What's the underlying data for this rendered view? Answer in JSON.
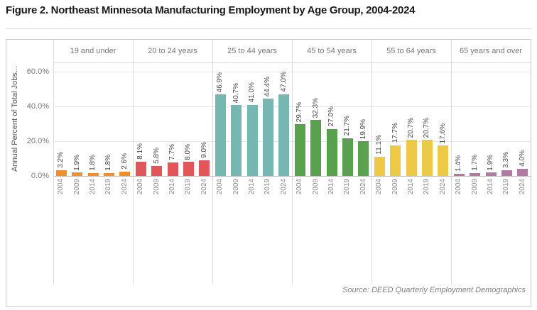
{
  "title": "Figure 2. Northeast Minnesota Manufacturing Employment by Age Group, 2004-2024",
  "source": "Source: DEED Quarterly Employment Demographics",
  "chart_data": {
    "type": "bar",
    "title": "Figure 2. Northeast Minnesota Manufacturing Employment by Age Group, 2004-2024",
    "xlabel": "",
    "ylabel": "Annual Percent of Total Jobs...",
    "ylim": [
      0,
      65
    ],
    "ytick_values": [
      0,
      20,
      40,
      60
    ],
    "ytick_labels": [
      "0.0%",
      "20.0%",
      "40.0%",
      "60.0%"
    ],
    "grid": true,
    "legend": false,
    "categories": [
      "2004",
      "2009",
      "2014",
      "2019",
      "2024"
    ],
    "groups": [
      {
        "label": "19 and under",
        "color": "#F28E2B",
        "values": [
          3.2,
          1.9,
          1.8,
          1.8,
          2.6
        ],
        "labels": [
          "3.2%",
          "1.9%",
          "1.8%",
          "1.8%",
          "2.6%"
        ]
      },
      {
        "label": "20 to 24 years",
        "color": "#E15759",
        "values": [
          8.1,
          5.8,
          7.7,
          8.0,
          9.0
        ],
        "labels": [
          "8.1%",
          "5.8%",
          "7.7%",
          "8.0%",
          "9.0%"
        ]
      },
      {
        "label": "25 to 44 years",
        "color": "#76B7B2",
        "values": [
          46.9,
          40.7,
          41.0,
          44.4,
          47.0
        ],
        "labels": [
          "46.9%",
          "40.7%",
          "41.0%",
          "44.4%",
          "47.0%"
        ]
      },
      {
        "label": "45 to 54 years",
        "color": "#59A14F",
        "values": [
          29.7,
          32.3,
          27.0,
          21.7,
          19.9
        ],
        "labels": [
          "29.7%",
          "32.3%",
          "27.0%",
          "21.7%",
          "19.9%"
        ]
      },
      {
        "label": "55 to 64 years",
        "color": "#EDC948",
        "values": [
          11.1,
          17.7,
          20.7,
          20.7,
          17.6
        ],
        "labels": [
          "11.1%",
          "17.7%",
          "20.7%",
          "20.7%",
          "17.6%"
        ]
      },
      {
        "label": "65 years and over",
        "color": "#B07AA1",
        "values": [
          1.4,
          1.7,
          1.9,
          3.3,
          4.0
        ],
        "labels": [
          "1.4%",
          "1.7%",
          "1.9%",
          "3.3%",
          "4.0%"
        ]
      }
    ]
  }
}
